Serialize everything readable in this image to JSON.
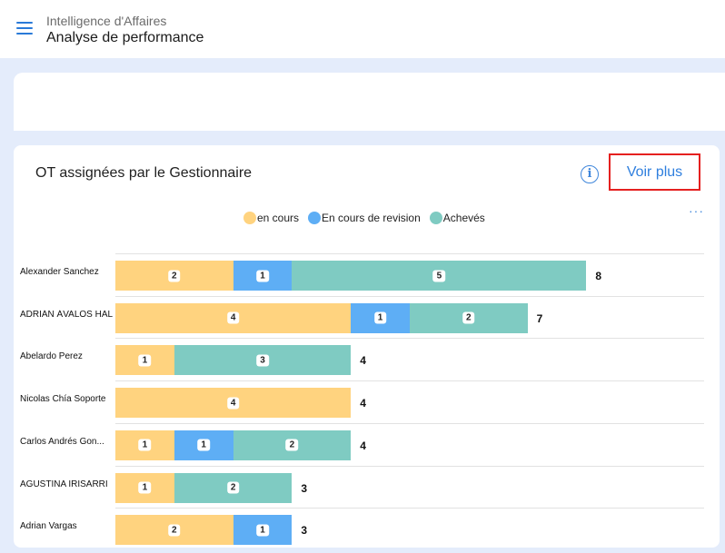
{
  "header": {
    "subtitle": "Intelligence d'Affaires",
    "title": "Analyse de performance"
  },
  "card": {
    "title": "OT assignées par le Gestionnaire",
    "info_icon": "i",
    "voir_plus": "Voir plus",
    "more_icon": "···"
  },
  "colors": {
    "en_cours": "#ffd37f",
    "revision": "#5eaef5",
    "acheves": "#7fcbc2"
  },
  "legend": [
    "en cours",
    "En cours de revision",
    "Achevés"
  ],
  "chart_data": {
    "type": "bar",
    "orientation": "horizontal",
    "stacked": true,
    "categories": [
      "Alexander Sanchez",
      "ADRIÁN ÁVALOS HAL",
      "Abelardo Perez",
      "Nicolas Chía Soporte",
      "Carlos Andrés Gon...",
      "AGUSTINA IRISARRI",
      "Adrian Vargas"
    ],
    "series": [
      {
        "name": "en cours",
        "values": [
          2,
          4,
          1,
          4,
          1,
          1,
          2
        ]
      },
      {
        "name": "En cours de revision",
        "values": [
          1,
          1,
          0,
          0,
          1,
          0,
          1
        ]
      },
      {
        "name": "Achevés",
        "values": [
          5,
          2,
          3,
          0,
          2,
          2,
          0
        ]
      }
    ],
    "totals": [
      "8",
      "7",
      "4",
      "4",
      "4",
      "3",
      "3"
    ],
    "legend_position": "top"
  }
}
